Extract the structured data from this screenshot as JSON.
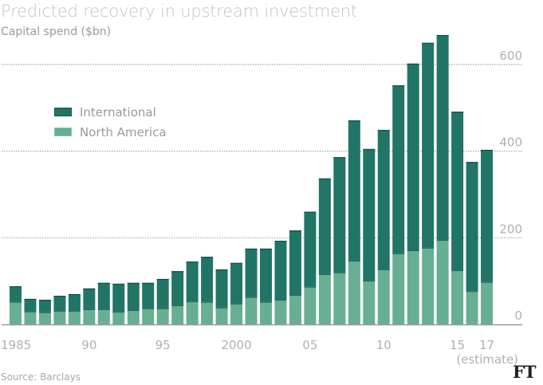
{
  "header": {
    "title": "Predicted recovery in upstream investment",
    "subtitle": "Capital spend ($bn)"
  },
  "footer": {
    "source": "Source: Barclays",
    "logo": "FT"
  },
  "colors": {
    "international": "#217567",
    "north_america": "#68ae93",
    "grid": "#a8a8a8",
    "axis": "#9a9a9a",
    "tick_text": "#b0b0b0"
  },
  "chart_data": {
    "type": "bar",
    "stacked": true,
    "title": "Predicted recovery in upstream investment",
    "subtitle": "Capital spend ($bn)",
    "xlabel": "",
    "ylabel": "Capital spend ($bn)",
    "ylim": [
      0,
      680
    ],
    "yticks": [
      0,
      200,
      400,
      600
    ],
    "y_axis_side": "right",
    "grid": true,
    "legend_position": "top-left",
    "categories": [
      "1985",
      "1986",
      "1987",
      "1988",
      "1989",
      "1990",
      "1991",
      "1992",
      "1993",
      "1994",
      "1995",
      "1996",
      "1997",
      "1998",
      "1999",
      "2000",
      "2001",
      "2002",
      "2003",
      "2004",
      "2005",
      "2006",
      "2007",
      "2008",
      "2009",
      "2010",
      "2011",
      "2012",
      "2013",
      "2014",
      "2015",
      "2016",
      "2017"
    ],
    "xtick_labels": [
      {
        "category": "1985",
        "label": "1985"
      },
      {
        "category": "1990",
        "label": "90"
      },
      {
        "category": "1995",
        "label": "95"
      },
      {
        "category": "2000",
        "label": "2000"
      },
      {
        "category": "2005",
        "label": "05"
      },
      {
        "category": "2010",
        "label": "10"
      },
      {
        "category": "2015",
        "label": "15"
      },
      {
        "category": "2017",
        "label": "17"
      }
    ],
    "annotation": "(estimate)",
    "series": [
      {
        "name": "North America",
        "values": [
          52,
          30,
          28,
          31,
          31,
          35,
          35,
          29,
          33,
          37,
          37,
          44,
          53,
          52,
          39,
          48,
          63,
          52,
          57,
          68,
          87,
          116,
          120,
          147,
          101,
          127,
          164,
          171,
          177,
          195,
          125,
          77,
          98
        ]
      },
      {
        "name": "International",
        "values": [
          36,
          29,
          29,
          35,
          39,
          48,
          61,
          65,
          63,
          59,
          68,
          79,
          92,
          104,
          88,
          94,
          112,
          123,
          136,
          149,
          173,
          221,
          266,
          324,
          304,
          322,
          388,
          431,
          473,
          473,
          366,
          298,
          305
        ]
      }
    ],
    "totals": [
      88,
      59,
      57,
      66,
      70,
      83,
      96,
      94,
      96,
      96,
      105,
      123,
      145,
      156,
      127,
      142,
      175,
      175,
      193,
      217,
      260,
      337,
      386,
      471,
      405,
      449,
      552,
      602,
      650,
      668,
      491,
      375,
      403
    ]
  },
  "legend": [
    {
      "name": "International",
      "color": "#217567"
    },
    {
      "name": "North America",
      "color": "#68ae93"
    }
  ]
}
